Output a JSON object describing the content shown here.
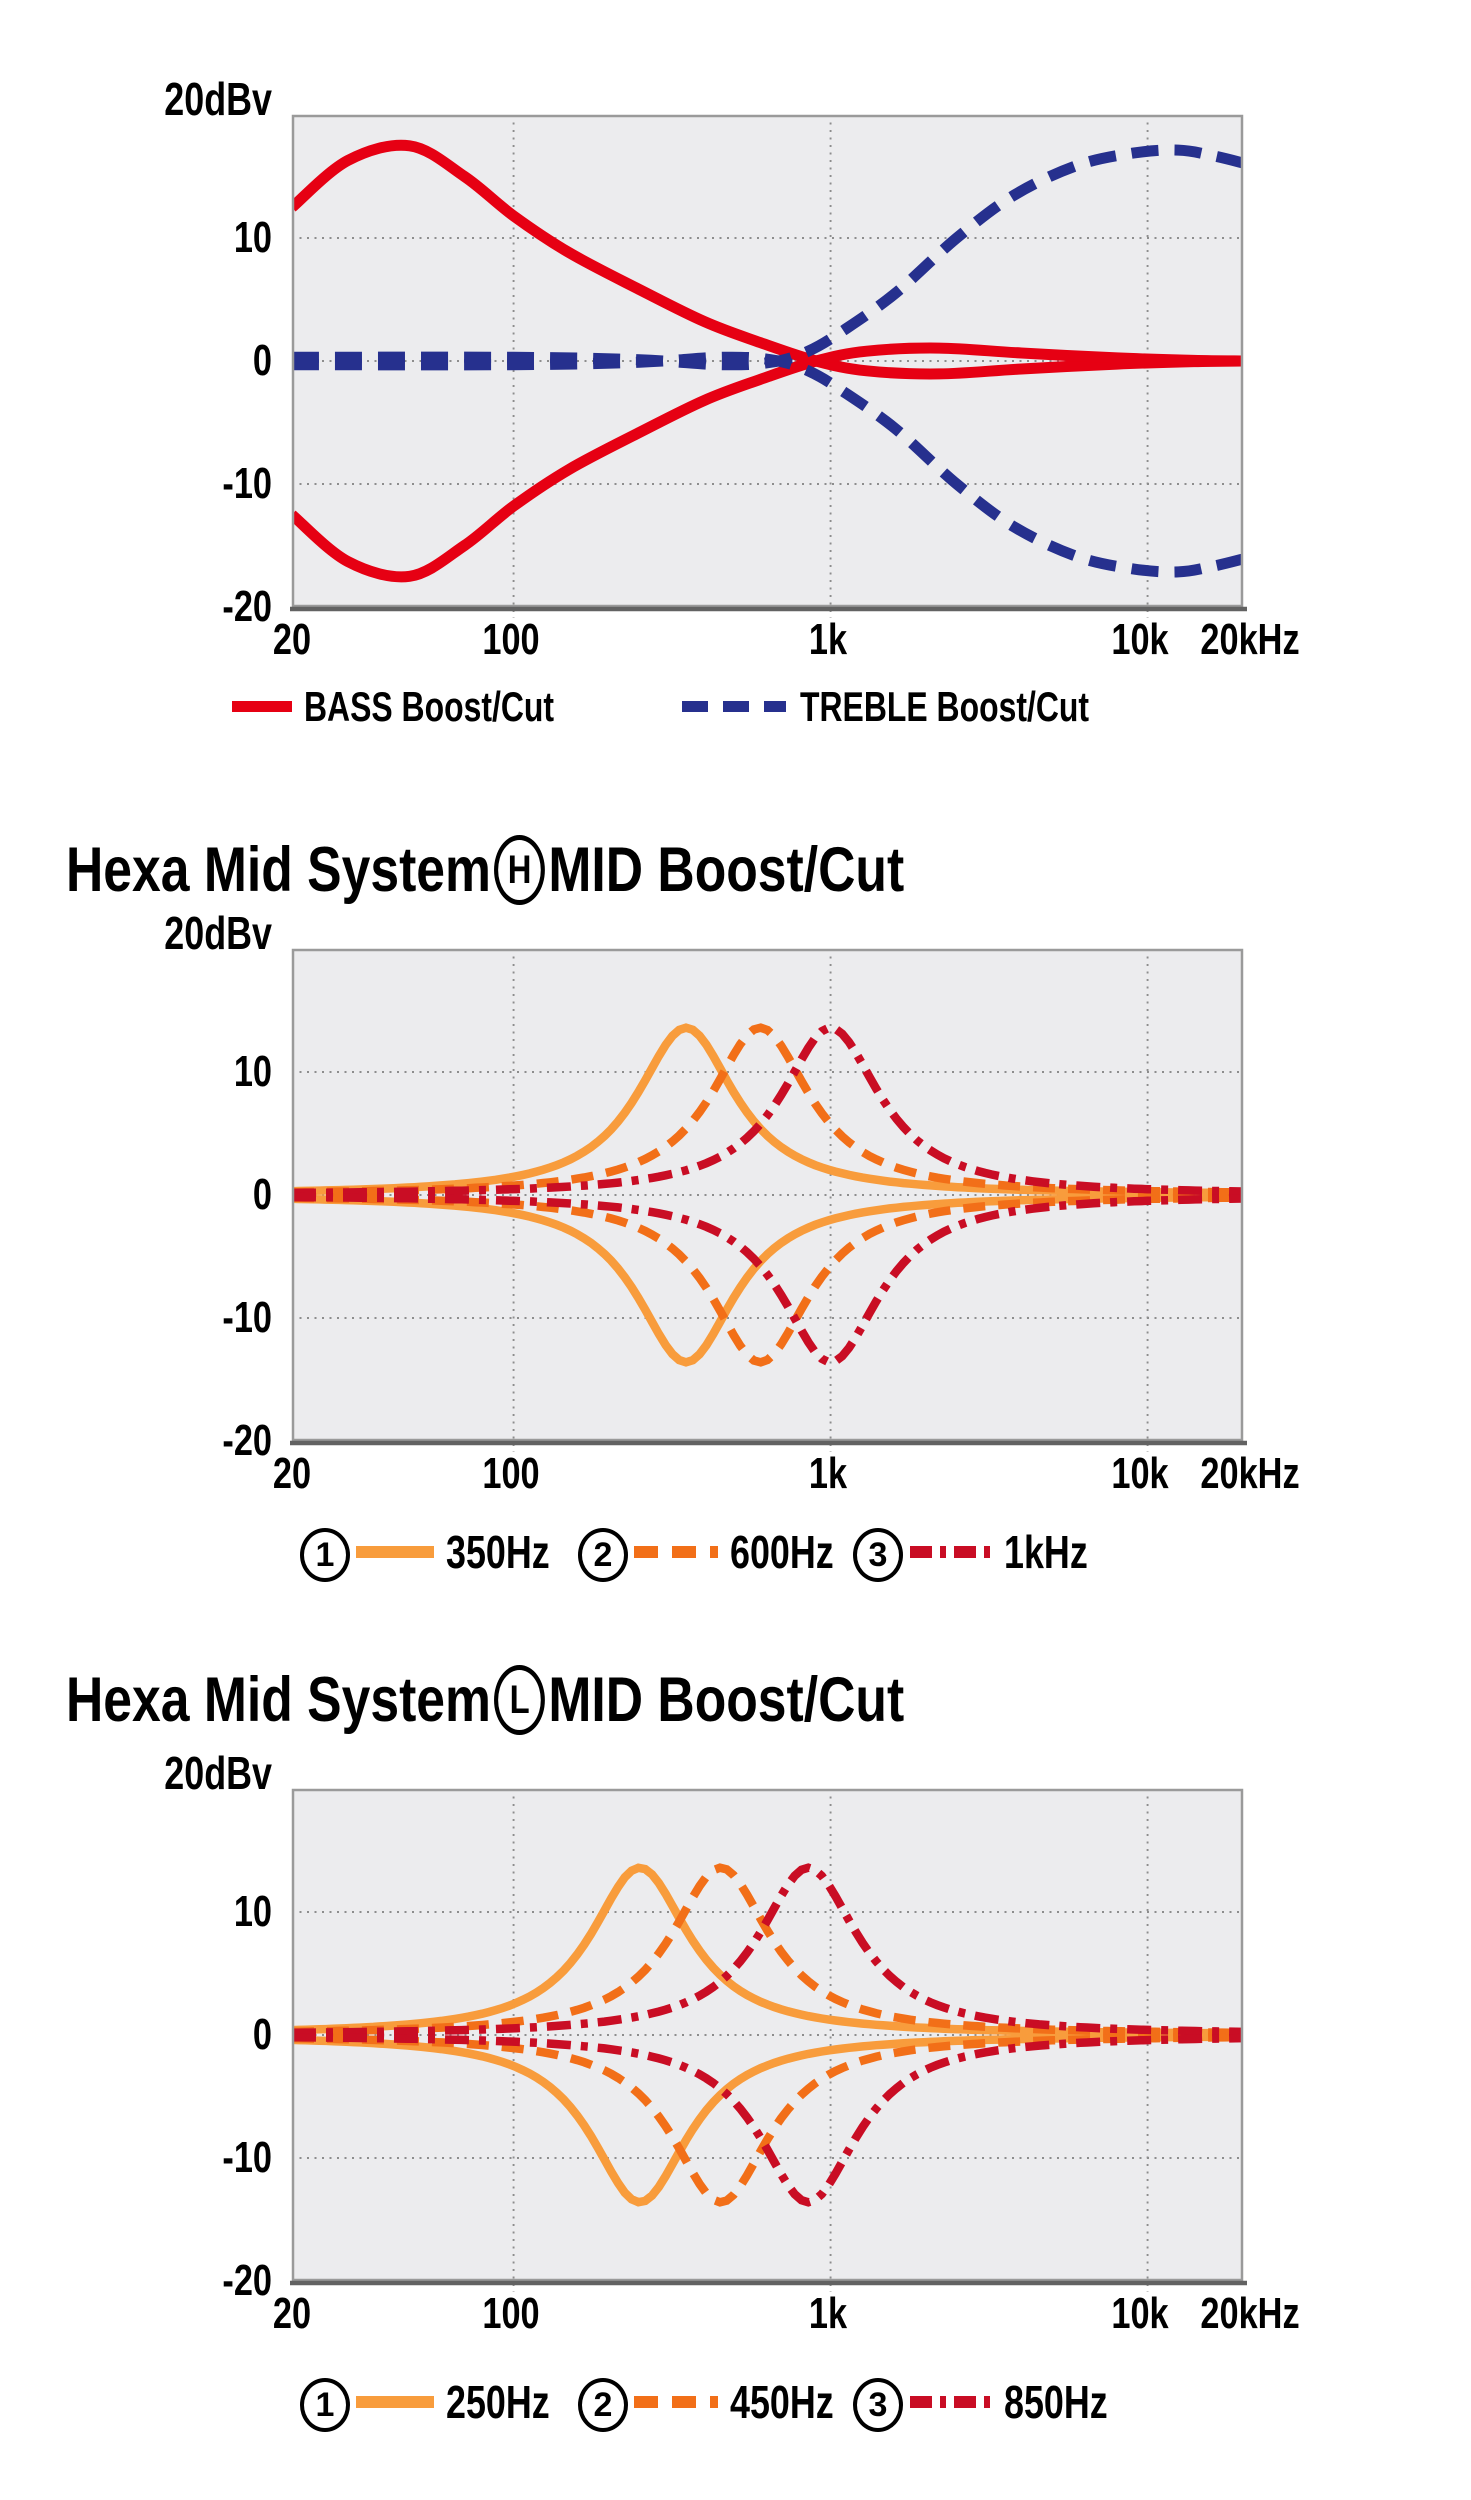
{
  "page": {
    "background": "#ffffff"
  },
  "palette": {
    "bass_red": "#e60013",
    "treble_navy": "#26308e",
    "mid_orange_solid": "#f89c3c",
    "mid_orange_dash": "#f26f18",
    "mid_crimson": "#c90d24",
    "plot_bg": "#ececee",
    "grid_gray": "#8d8d8d",
    "border_gray": "#9a9a9a",
    "axis_dark": "#626262"
  },
  "chart_data": [
    {
      "type": "line",
      "title": "",
      "ylabel": "20dBv",
      "y_ticks": [
        "10",
        "0",
        "-10",
        "-20"
      ],
      "x_ticks": [
        "20",
        "100",
        "1k",
        "10k",
        "20kHz"
      ],
      "x_axis": {
        "scale": "log",
        "min_hz": 20,
        "max_hz": 20000,
        "grid_hz": [
          100,
          1000,
          10000
        ]
      },
      "y_axis": {
        "min_db": -20,
        "max_db": 20,
        "grid_db": [
          10,
          0,
          -10
        ]
      },
      "plot_bg": "#ececee",
      "series": [
        {
          "name": "BASS Boost/Cut",
          "color": "#e60013",
          "width": 11,
          "mirror": true,
          "points_hz_db": [
            [
              20,
              12.5
            ],
            [
              30,
              16.3
            ],
            [
              47,
              17.5
            ],
            [
              70,
              15.0
            ],
            [
              100,
              11.8
            ],
            [
              150,
              8.8
            ],
            [
              250,
              5.8
            ],
            [
              400,
              3.2
            ],
            [
              600,
              1.5
            ],
            [
              900,
              0
            ],
            [
              1300,
              -0.8
            ],
            [
              2200,
              -1.05
            ],
            [
              4000,
              -0.65
            ],
            [
              8000,
              -0.25
            ],
            [
              14000,
              -0.05
            ],
            [
              20000,
              0
            ]
          ]
        },
        {
          "name": "TREBLE Boost/Cut",
          "color": "#26308e",
          "width": 11,
          "dash": [
            27,
            16
          ],
          "mirror": true,
          "points_hz_db": [
            [
              20,
              0.3
            ],
            [
              100,
              0.3
            ],
            [
              250,
              0.1
            ],
            [
              450,
              -0.3
            ],
            [
              650,
              -0.1
            ],
            [
              850,
              0.8
            ],
            [
              1100,
              2.5
            ],
            [
              1600,
              5.5
            ],
            [
              2500,
              10.0
            ],
            [
              3800,
              13.5
            ],
            [
              6000,
              15.9
            ],
            [
              9000,
              16.9
            ],
            [
              12500,
              17.15
            ],
            [
              16000,
              16.7
            ],
            [
              20000,
              16.1
            ]
          ]
        }
      ],
      "legend": [
        {
          "label": "BASS Boost/Cut",
          "color": "#e60013",
          "style": "solid"
        },
        {
          "label": "TREBLE Boost/Cut",
          "color": "#26308e",
          "style": "dashed"
        }
      ]
    },
    {
      "type": "line",
      "title": "Hexa Mid System(H)MID Boost/Cut",
      "title_parts": {
        "prefix": "Hexa Mid System",
        "badge": "H",
        "suffix": "MID Boost/Cut"
      },
      "ylabel": "20dBv",
      "y_ticks": [
        "10",
        "0",
        "-10",
        "-20"
      ],
      "x_ticks": [
        "20",
        "100",
        "1k",
        "10k",
        "20kHz"
      ],
      "x_axis": {
        "scale": "log",
        "min_hz": 20,
        "max_hz": 20000,
        "grid_hz": [
          100,
          1000,
          10000
        ]
      },
      "y_axis": {
        "min_db": -20,
        "max_db": 20,
        "grid_db": [
          10,
          0,
          -10
        ]
      },
      "plot_bg": "#ececee",
      "series": [
        {
          "name": "350Hz",
          "color": "#f89c3c",
          "width": 8.5,
          "mirror": true,
          "bell": {
            "f0_hz": 350,
            "gain_db": 13.6,
            "width_decades": 0.19
          }
        },
        {
          "name": "600Hz",
          "color": "#f26f18",
          "width": 8.5,
          "dash": [
            22,
            13
          ],
          "mirror": true,
          "bell": {
            "f0_hz": 600,
            "gain_db": 13.6,
            "width_decades": 0.19
          }
        },
        {
          "name": "1kHz",
          "color": "#c90d24",
          "width": 8.5,
          "dash": [
            24,
            10,
            7,
            10
          ],
          "mirror": true,
          "bell": {
            "f0_hz": 1000,
            "gain_db": 13.6,
            "width_decades": 0.19
          }
        }
      ],
      "legend": [
        {
          "num": "1",
          "label": "350Hz",
          "color": "#f89c3c",
          "style": "solid"
        },
        {
          "num": "2",
          "label": "600Hz",
          "color": "#f26f18",
          "style": "dashed"
        },
        {
          "num": "3",
          "label": "1kHz",
          "color": "#c90d24",
          "style": "dashdot"
        }
      ]
    },
    {
      "type": "line",
      "title": "Hexa Mid System(L)MID Boost/Cut",
      "title_parts": {
        "prefix": "Hexa Mid System",
        "badge": "L",
        "suffix": "MID Boost/Cut"
      },
      "ylabel": "20dBv",
      "y_ticks": [
        "10",
        "0",
        "-10",
        "-20"
      ],
      "x_ticks": [
        "20",
        "100",
        "1k",
        "10k",
        "20kHz"
      ],
      "x_axis": {
        "scale": "log",
        "min_hz": 20,
        "max_hz": 20000,
        "grid_hz": [
          100,
          1000,
          10000
        ]
      },
      "y_axis": {
        "min_db": -20,
        "max_db": 20,
        "grid_db": [
          10,
          0,
          -10
        ]
      },
      "plot_bg": "#ececee",
      "series": [
        {
          "name": "250Hz",
          "color": "#f89c3c",
          "width": 8.5,
          "mirror": true,
          "bell": {
            "f0_hz": 250,
            "gain_db": 13.6,
            "width_decades": 0.19
          }
        },
        {
          "name": "450Hz",
          "color": "#f26f18",
          "width": 8.5,
          "dash": [
            22,
            13
          ],
          "mirror": true,
          "bell": {
            "f0_hz": 450,
            "gain_db": 13.6,
            "width_decades": 0.19
          }
        },
        {
          "name": "850Hz",
          "color": "#c90d24",
          "width": 8.5,
          "dash": [
            24,
            10,
            7,
            10
          ],
          "mirror": true,
          "bell": {
            "f0_hz": 850,
            "gain_db": 13.6,
            "width_decades": 0.19
          }
        }
      ],
      "legend": [
        {
          "num": "1",
          "label": "250Hz",
          "color": "#f89c3c",
          "style": "solid"
        },
        {
          "num": "2",
          "label": "450Hz",
          "color": "#f26f18",
          "style": "dashed"
        },
        {
          "num": "3",
          "label": "850Hz",
          "color": "#c90d24",
          "style": "dashdot"
        }
      ]
    }
  ]
}
